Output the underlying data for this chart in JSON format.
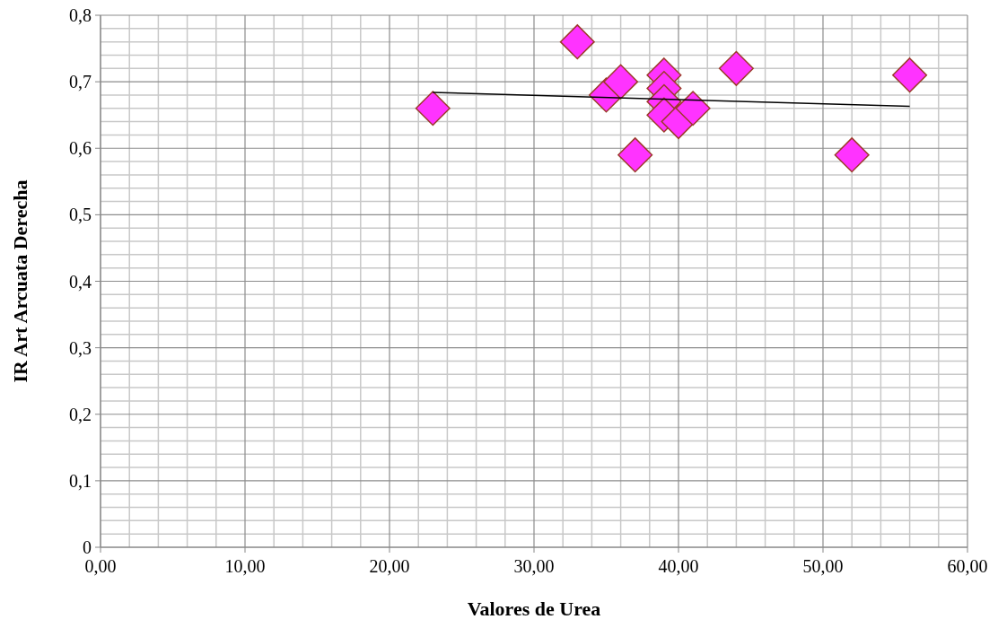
{
  "chart_data": {
    "type": "scatter",
    "xlabel": "Valores de Urea",
    "ylabel": "IR Art Arcuata Derecha",
    "xlim": [
      0,
      60
    ],
    "ylim": [
      0,
      0.8
    ],
    "xticks": [
      {
        "value": 0,
        "label": "0,00"
      },
      {
        "value": 10,
        "label": "10,00"
      },
      {
        "value": 20,
        "label": "20,00"
      },
      {
        "value": 30,
        "label": "30,00"
      },
      {
        "value": 40,
        "label": "40,00"
      },
      {
        "value": 50,
        "label": "50,00"
      },
      {
        "value": 60,
        "label": "60,00"
      }
    ],
    "yticks": [
      0,
      {
        "value": 0.1,
        "label": "0,1"
      },
      {
        "value": 0.2,
        "label": "0,2"
      },
      {
        "value": 0.3,
        "label": "0,3"
      },
      {
        "value": 0.4,
        "label": "0,4"
      },
      {
        "value": 0.5,
        "label": "0,5"
      },
      {
        "value": 0.6,
        "label": "0,6"
      },
      {
        "value": 0.7,
        "label": "0,7"
      },
      {
        "value": 0.8,
        "label": "0,8"
      }
    ],
    "grid": true,
    "series": [
      {
        "type": "line",
        "color": "#000000",
        "marker": "none",
        "x": [
          23,
          56
        ],
        "values": [
          0.684,
          0.663
        ]
      },
      {
        "color": "#ff33ff",
        "marker": "diamond",
        "x": [
          23,
          33,
          35,
          36,
          37,
          39,
          39,
          39,
          39,
          40,
          41,
          44,
          52,
          56
        ],
        "values": [
          0.66,
          0.76,
          0.68,
          0.7,
          0.59,
          0.71,
          0.69,
          0.67,
          0.65,
          0.64,
          0.66,
          0.72,
          0.59,
          0.71
        ]
      }
    ]
  }
}
